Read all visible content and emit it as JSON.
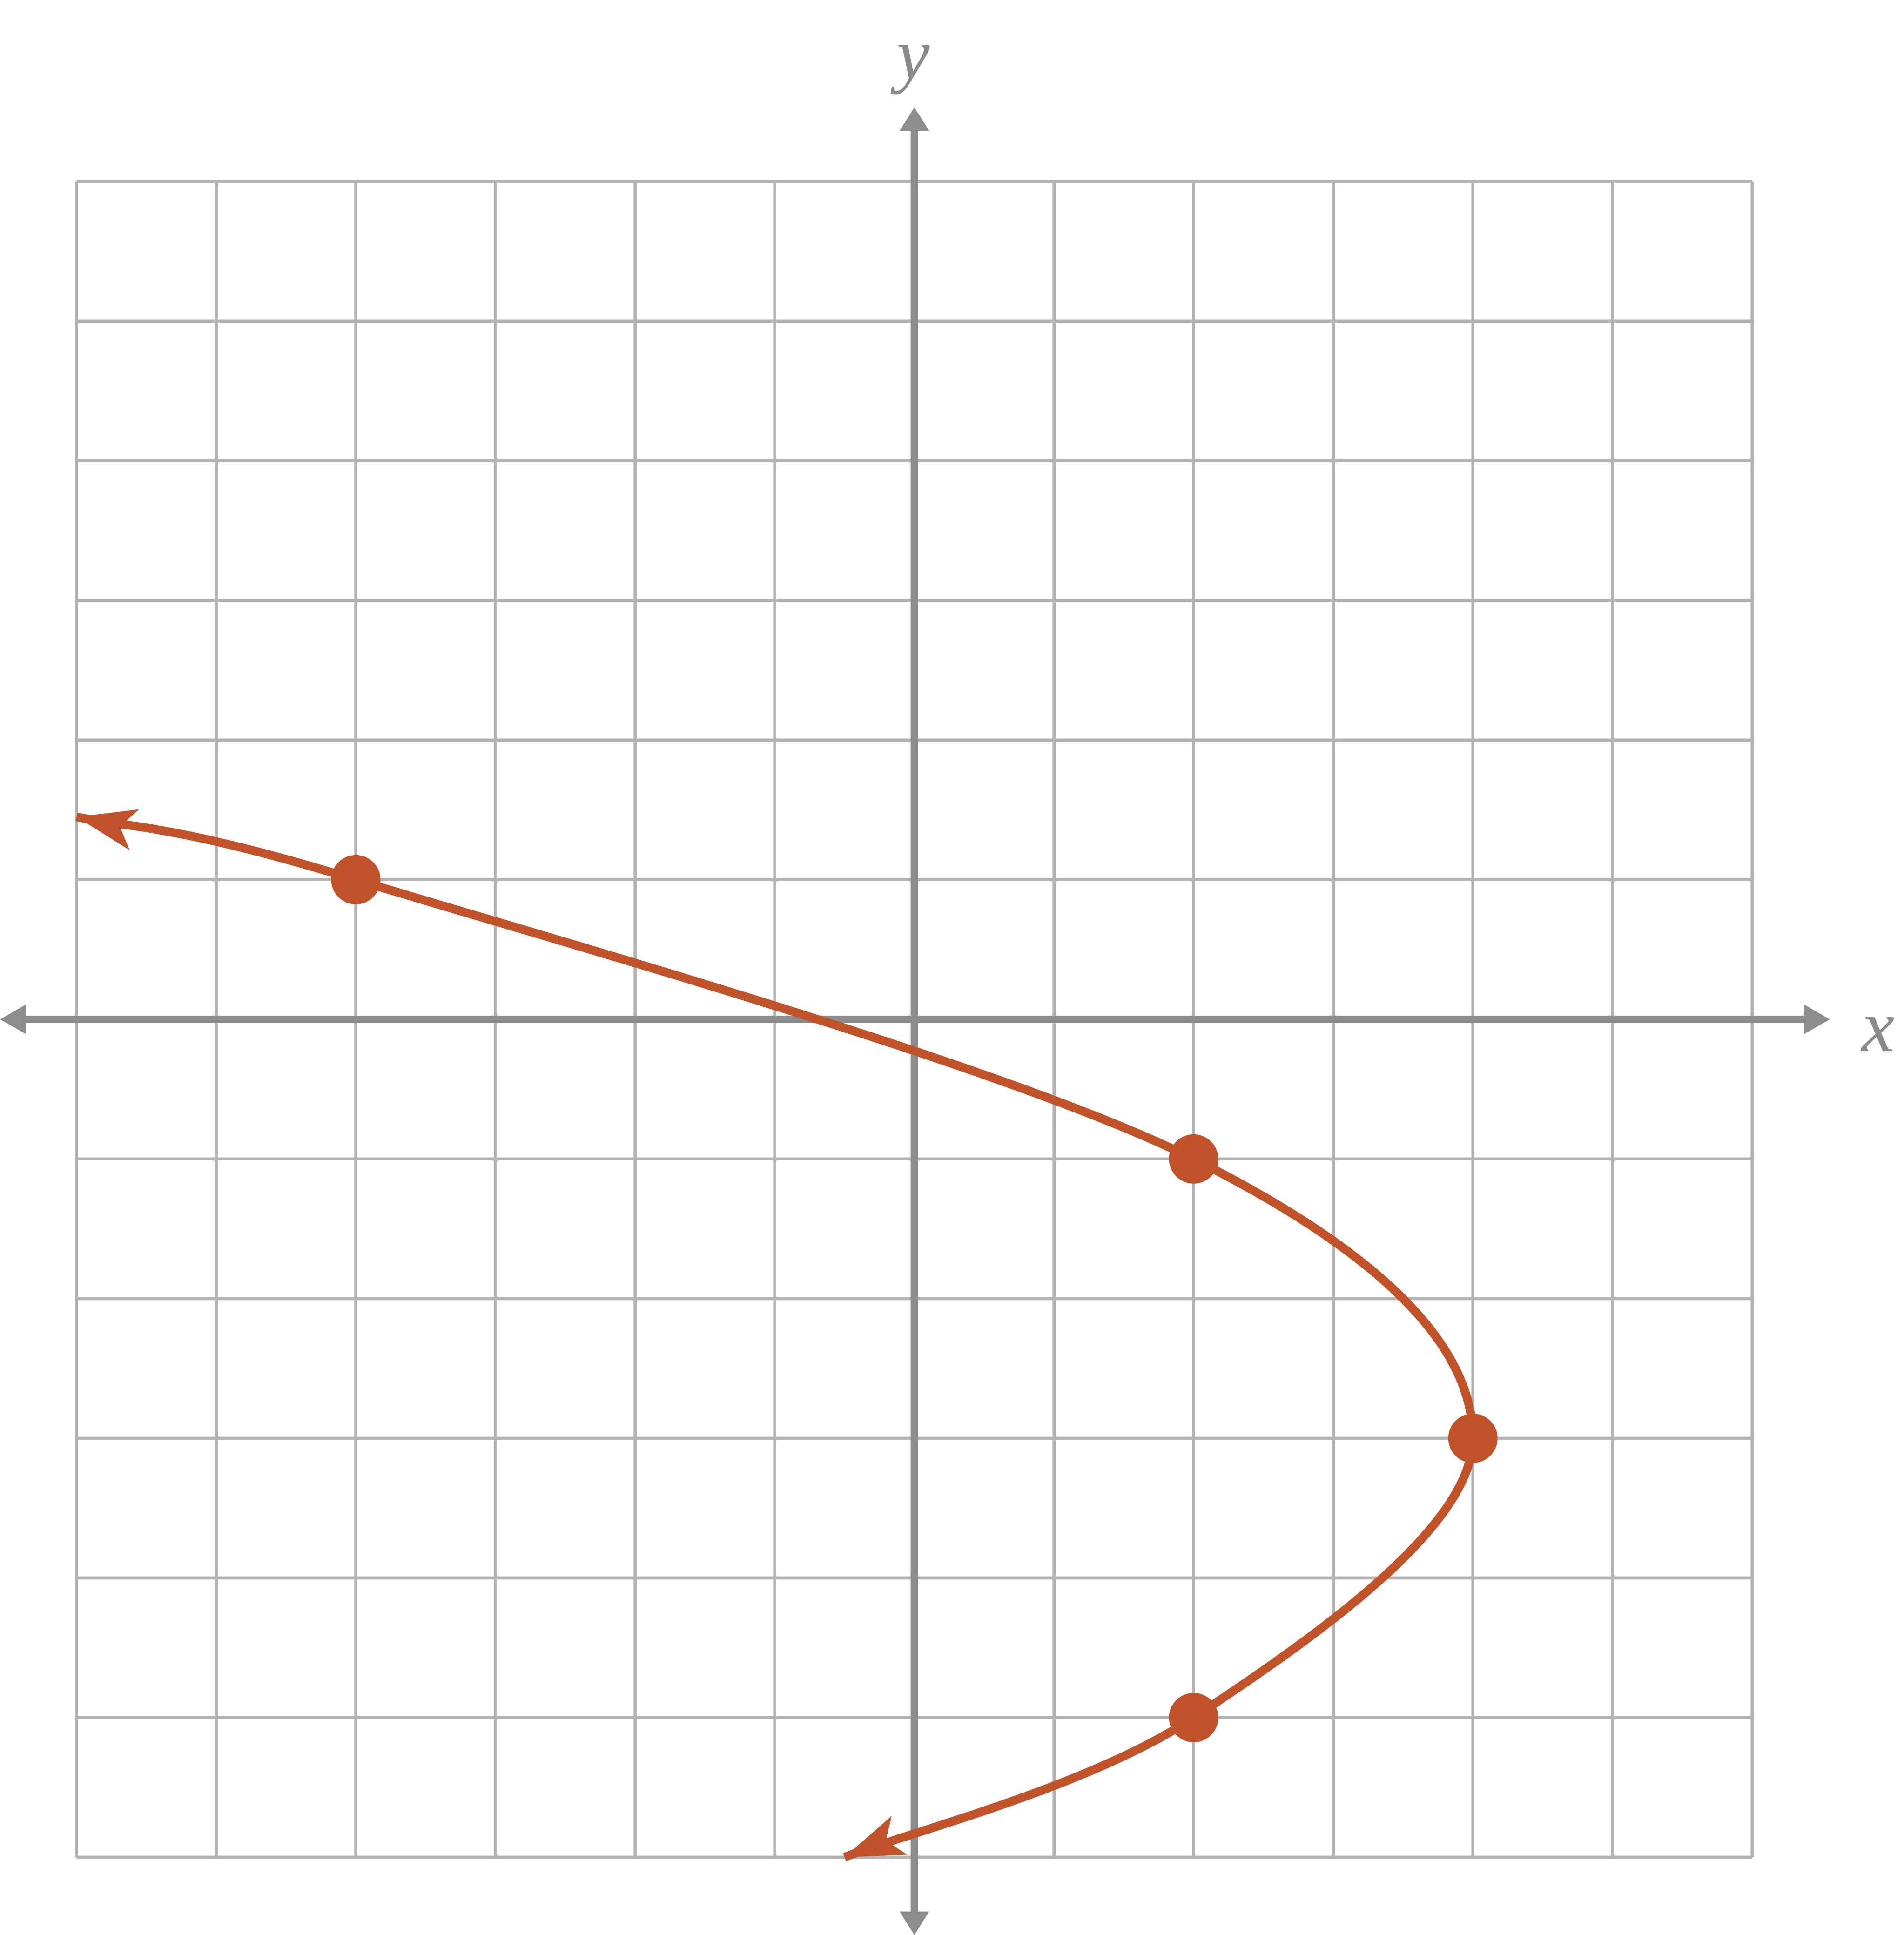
{
  "chart_data": {
    "type": "line",
    "x_label": "x",
    "y_label": "y",
    "xlim": [
      -6,
      6
    ],
    "ylim": [
      -6,
      6
    ],
    "xticks": [
      -6,
      -5,
      -4,
      -3,
      -2,
      -1,
      0,
      1,
      2,
      3,
      4,
      5,
      6
    ],
    "yticks": [
      -6,
      -5,
      -4,
      -3,
      -2,
      -1,
      0,
      1,
      2,
      3,
      4,
      5,
      6
    ],
    "grid": true,
    "series": [
      {
        "name": "curve",
        "color": "#c0532a",
        "x": [
          -6,
          -4,
          2,
          4,
          2,
          -0.5
        ],
        "values": [
          1.45,
          1,
          -1,
          -3,
          -5,
          -6
        ]
      },
      {
        "name": "points",
        "color": "#c0532a",
        "x": [
          -4,
          2,
          4,
          2
        ],
        "values": [
          1,
          -1,
          -3,
          -5
        ]
      }
    ]
  }
}
